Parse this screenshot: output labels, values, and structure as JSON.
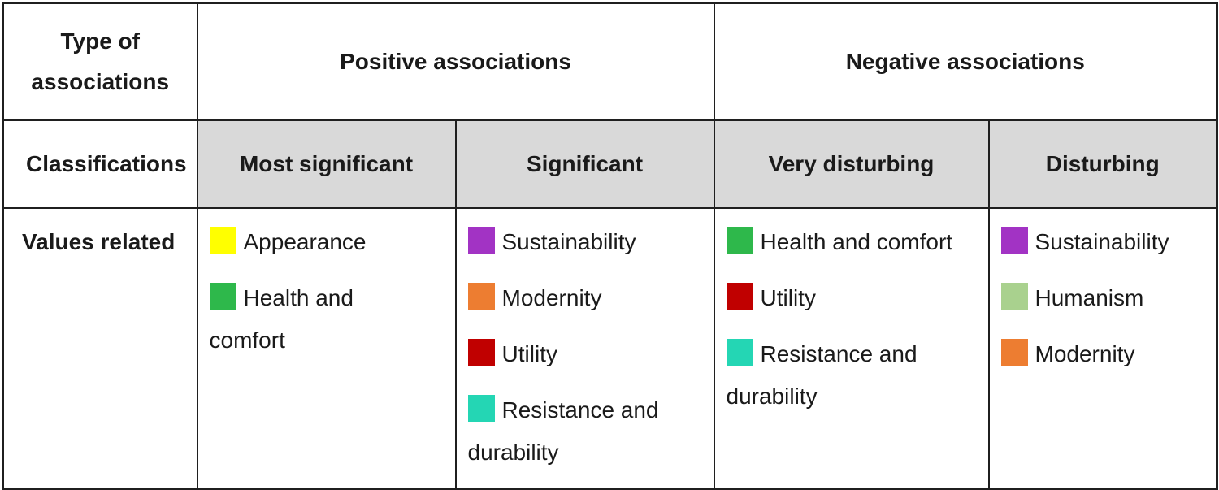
{
  "table": {
    "colors": {
      "header_bg": "#D9D9D9",
      "border": "#1F1F1F",
      "text": "#1A1A1A"
    },
    "header_row1": {
      "type_of_associations": "Type of associations",
      "positive": "Positive associations",
      "negative": "Negative associations"
    },
    "header_row2": {
      "classifications": "Classifications",
      "cols": [
        "Most significant",
        "Significant",
        "Very disturbing",
        "Disturbing"
      ]
    },
    "values_row": {
      "label": "Values related",
      "columns": [
        {
          "classification": "Most significant",
          "items": [
            {
              "label": "Appearance",
              "color": "#FFFF00",
              "lines": [
                "Appearance"
              ]
            },
            {
              "label": "Health and comfort",
              "color": "#2EB84B",
              "lines": [
                "Health and",
                "comfort"
              ]
            }
          ]
        },
        {
          "classification": "Significant",
          "items": [
            {
              "label": "Sustainability",
              "color": "#A233C4",
              "lines": [
                "Sustainability"
              ]
            },
            {
              "label": "Modernity",
              "color": "#ED7D31",
              "lines": [
                "Modernity"
              ]
            },
            {
              "label": "Utility",
              "color": "#C00000",
              "lines": [
                "Utility"
              ]
            },
            {
              "label": "Resistance and durability",
              "color": "#24D6B4",
              "lines": [
                "Resistance and",
                "durability"
              ]
            }
          ]
        },
        {
          "classification": "Very disturbing",
          "items": [
            {
              "label": "Health and comfort",
              "color": "#2EB84B",
              "lines": [
                "Health and comfort"
              ]
            },
            {
              "label": "Utility",
              "color": "#C00000",
              "lines": [
                "Utility"
              ]
            },
            {
              "label": "Resistance and durability",
              "color": "#24D6B4",
              "lines": [
                "Resistance and",
                "durability"
              ]
            }
          ]
        },
        {
          "classification": "Disturbing",
          "items": [
            {
              "label": "Sustainability",
              "color": "#A233C4",
              "lines": [
                "Sustainability"
              ]
            },
            {
              "label": "Humanism",
              "color": "#A9D18E",
              "lines": [
                "Humanism"
              ]
            },
            {
              "label": "Modernity",
              "color": "#ED7D31",
              "lines": [
                "Modernity"
              ]
            }
          ]
        }
      ]
    }
  }
}
